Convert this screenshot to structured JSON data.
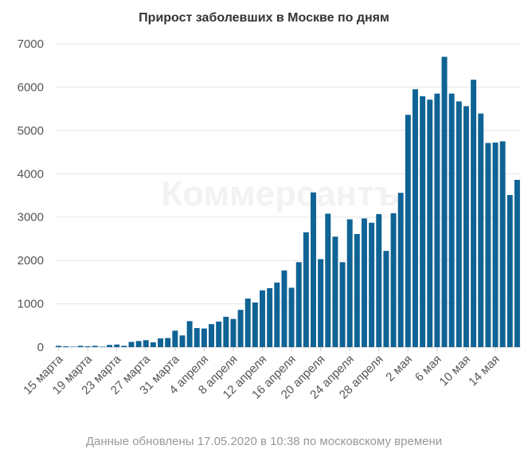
{
  "chart_data": {
    "type": "bar",
    "title": "Прирост заболевших в Москве по дням",
    "xlabel": "",
    "ylabel": "",
    "ylim": [
      0,
      7000
    ],
    "yticks": [
      0,
      1000,
      2000,
      3000,
      4000,
      5000,
      6000,
      7000
    ],
    "grid": true,
    "legend": "none",
    "bar_color": "#0f6395",
    "categories": [
      "15 марта",
      "16 марта",
      "17 марта",
      "18 марта",
      "19 марта",
      "20 марта",
      "21 марта",
      "22 марта",
      "23 марта",
      "24 марта",
      "25 марта",
      "26 марта",
      "27 марта",
      "28 марта",
      "29 марта",
      "30 марта",
      "31 марта",
      "1 апреля",
      "2 апреля",
      "3 апреля",
      "4 апреля",
      "5 апреля",
      "6 апреля",
      "7 апреля",
      "8 апреля",
      "9 апреля",
      "10 апреля",
      "11 апреля",
      "12 апреля",
      "13 апреля",
      "14 апреля",
      "15 апреля",
      "16 апреля",
      "17 апреля",
      "18 апреля",
      "19 апреля",
      "20 апреля",
      "21 апреля",
      "22 апреля",
      "23 апреля",
      "24 апреля",
      "25 апреля",
      "26 апреля",
      "27 апреля",
      "28 апреля",
      "29 апреля",
      "30 апреля",
      "1 мая",
      "2 мая",
      "3 мая",
      "4 мая",
      "5 мая",
      "6 мая",
      "7 мая",
      "8 мая",
      "9 мая",
      "10 мая",
      "11 мая",
      "12 мая",
      "13 мая",
      "14 мая",
      "15 мая",
      "16 мая",
      "17 мая"
    ],
    "tick_labels": [
      "15 марта",
      "19 марта",
      "23 марта",
      "27 марта",
      "31 марта",
      "4 апреля",
      "8 апреля",
      "12 апреля",
      "16 апреля",
      "20 апреля",
      "24 апреля",
      "28 апреля",
      "2 мая",
      "6 мая",
      "10 мая",
      "14 мая"
    ],
    "tick_every": 4,
    "values": [
      30,
      20,
      10,
      30,
      20,
      30,
      10,
      50,
      60,
      30,
      120,
      140,
      160,
      110,
      200,
      210,
      380,
      270,
      600,
      440,
      430,
      530,
      590,
      700,
      650,
      860,
      1120,
      1030,
      1310,
      1360,
      1490,
      1770,
      1370,
      1960,
      2650,
      3570,
      2030,
      3080,
      2550,
      1960,
      2950,
      2610,
      2970,
      2870,
      3070,
      2220,
      3090,
      3560,
      5360,
      5950,
      5790,
      5710,
      5850,
      6700,
      5850,
      5670,
      5560,
      6170,
      5390,
      4710,
      4720,
      4750,
      3510,
      3860
    ]
  },
  "watermark": "Коммерсантъ",
  "footer": "Данные обновлены 17.05.2020 в 10:38 по московскому времени"
}
